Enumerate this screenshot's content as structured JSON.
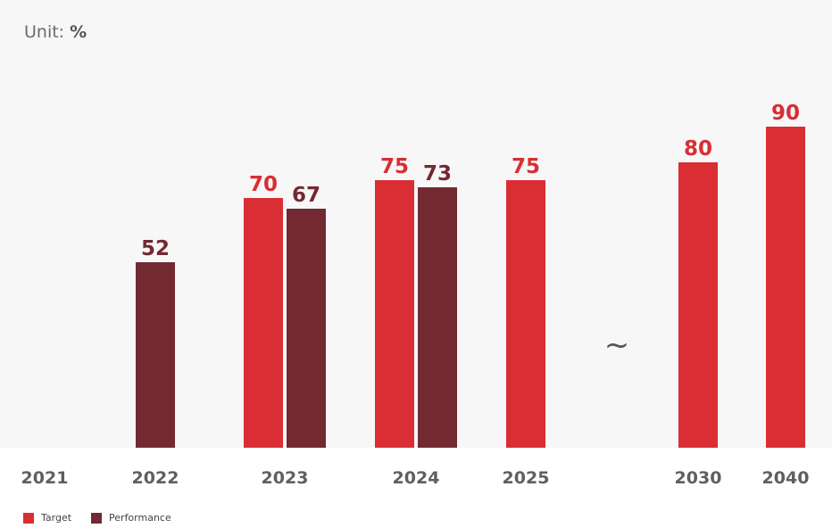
{
  "unit": {
    "prefix": "Unit: ",
    "symbol": "%"
  },
  "break_symbol": "~",
  "colors": {
    "target": "#d92e33",
    "performance": "#722931",
    "axis_label": "#5f5f5f",
    "background": "#f7f7f7"
  },
  "chart_data": {
    "type": "bar",
    "title": "",
    "xlabel": "",
    "ylabel": "",
    "unit": "%",
    "ylim": [
      0,
      100
    ],
    "grid": false,
    "legend_position": "bottom-left",
    "categories": [
      "2021",
      "2022",
      "2023",
      "2024",
      "2025",
      "2030",
      "2040"
    ],
    "series": [
      {
        "name": "Target",
        "values": [
          null,
          null,
          70,
          75,
          75,
          80,
          90
        ]
      },
      {
        "name": "Performance",
        "values": [
          null,
          52,
          67,
          73,
          null,
          null,
          null
        ]
      }
    ]
  }
}
